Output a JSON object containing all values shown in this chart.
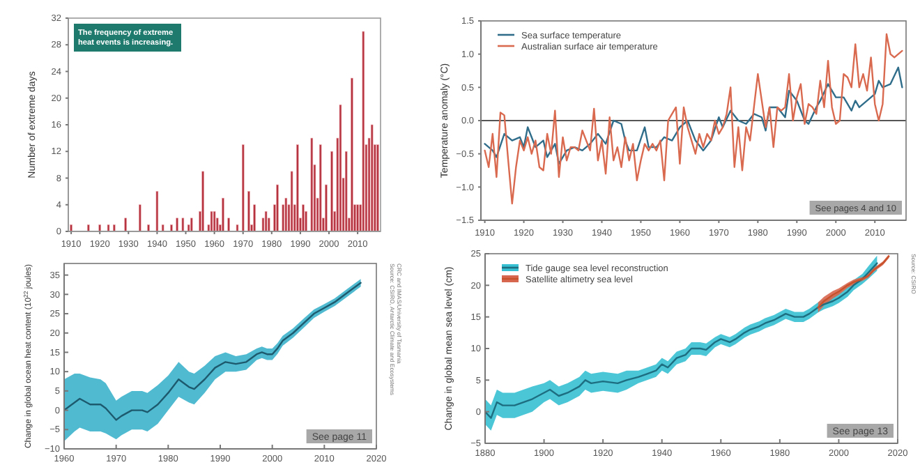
{
  "chart_data": [
    {
      "type": "bar",
      "ylabel": "Number of extreme days",
      "annotations": [
        "The frequency of extreme heat events is increasing."
      ],
      "color": "#b5323f",
      "xlim": [
        1909,
        2018
      ],
      "xticks": [
        1910,
        1920,
        1930,
        1940,
        1950,
        1960,
        1970,
        1980,
        1990,
        2000,
        2010
      ],
      "ylim": [
        0,
        32
      ],
      "yticks": [
        0,
        4,
        8,
        12,
        16,
        20,
        24,
        28,
        32
      ],
      "x": [
        1910,
        1916,
        1920,
        1923,
        1925,
        1929,
        1934,
        1937,
        1940,
        1942,
        1945,
        1947,
        1949,
        1951,
        1952,
        1955,
        1956,
        1958,
        1959,
        1960,
        1961,
        1962,
        1963,
        1965,
        1968,
        1970,
        1972,
        1973,
        1974,
        1977,
        1978,
        1979,
        1981,
        1982,
        1984,
        1985,
        1986,
        1987,
        1988,
        1989,
        1990,
        1991,
        1992,
        1994,
        1995,
        1996,
        1997,
        1998,
        1999,
        2001,
        2002,
        2003,
        2004,
        2005,
        2006,
        2007,
        2008,
        2009,
        2010,
        2011,
        2012,
        2013,
        2014,
        2015,
        2016,
        2017
      ],
      "values": [
        1,
        1,
        1,
        1,
        1,
        2,
        4,
        1,
        6,
        1,
        1,
        2,
        2,
        1,
        2,
        3,
        9,
        1,
        3,
        3,
        2,
        1,
        5,
        2,
        1,
        13,
        6,
        1,
        4,
        2,
        3,
        2,
        4,
        7,
        4,
        5,
        4,
        9,
        4,
        13,
        2,
        4,
        3,
        14,
        10,
        5,
        13,
        2,
        7,
        12,
        3,
        14,
        19,
        8,
        12,
        2,
        23,
        4,
        4,
        4,
        30,
        13,
        14,
        16,
        13,
        13
      ]
    },
    {
      "type": "line",
      "ylabel": "Temperature anomaly (°C)",
      "legend": "top left",
      "annotations": [
        "See pages 4 and 10"
      ],
      "xlim": [
        1909,
        2018
      ],
      "xticks": [
        1910,
        1920,
        1930,
        1940,
        1950,
        1960,
        1970,
        1980,
        1990,
        2000,
        2010
      ],
      "ylim": [
        -1.5,
        1.5
      ],
      "yticks": [
        {
          "value": -1.5,
          "label": "−1.5"
        },
        {
          "value": -1,
          "label": "−1.0"
        },
        {
          "value": -0.5,
          "label": "−0.5"
        },
        {
          "value": 0,
          "label": "0.0"
        },
        {
          "value": 0.5,
          "label": "0.5"
        },
        {
          "value": 1,
          "label": "1.0"
        },
        {
          "value": 1.5,
          "label": "1.5"
        }
      ],
      "ref_lines": [
        {
          "axis": "y",
          "value": 0,
          "color": "#555555"
        }
      ],
      "series": [
        {
          "name": "Sea surface temperature",
          "color": "#2f6d8a",
          "x": [
            1910,
            1912,
            1913,
            1915,
            1917,
            1919,
            1920,
            1921,
            1923,
            1925,
            1926,
            1928,
            1929,
            1931,
            1933,
            1935,
            1937,
            1939,
            1941,
            1943,
            1945,
            1946,
            1947,
            1949,
            1951,
            1952,
            1954,
            1956,
            1958,
            1960,
            1962,
            1964,
            1966,
            1968,
            1970,
            1971,
            1973,
            1975,
            1977,
            1979,
            1981,
            1982,
            1983,
            1985,
            1987,
            1988,
            1990,
            1992,
            1993,
            1995,
            1996,
            1998,
            2000,
            2002,
            2004,
            2005,
            2006,
            2008,
            2010,
            2011,
            2012,
            2014,
            2016,
            2017
          ],
          "values": [
            -0.35,
            -0.45,
            -0.55,
            -0.2,
            -0.3,
            -0.25,
            -0.4,
            -0.1,
            -0.4,
            -0.3,
            -0.55,
            -0.35,
            -0.65,
            -0.45,
            -0.4,
            -0.45,
            -0.35,
            -0.2,
            -0.35,
            0,
            -0.05,
            -0.3,
            -0.45,
            -0.45,
            -0.1,
            -0.4,
            -0.4,
            -0.25,
            -0.3,
            -0.1,
            0,
            -0.3,
            -0.45,
            -0.3,
            0.05,
            -0.1,
            0.15,
            0,
            -0.05,
            0.1,
            0.05,
            -0.15,
            0.2,
            0.2,
            0.05,
            0.45,
            0.3,
            0,
            -0.05,
            0.2,
            0.3,
            0.55,
            0.35,
            0.35,
            0.15,
            0.3,
            0.2,
            0.3,
            0.4,
            0.6,
            0.5,
            0.55,
            0.8,
            0.5
          ]
        },
        {
          "name": "Australian surface air temperature",
          "color": "#d9694f",
          "x": [
            1910,
            1911,
            1912,
            1913,
            1914,
            1915,
            1916,
            1917,
            1918,
            1919,
            1920,
            1921,
            1922,
            1923,
            1924,
            1925,
            1926,
            1927,
            1928,
            1929,
            1930,
            1931,
            1932,
            1933,
            1934,
            1935,
            1936,
            1937,
            1938,
            1939,
            1940,
            1941,
            1942,
            1943,
            1944,
            1945,
            1946,
            1947,
            1948,
            1949,
            1950,
            1951,
            1952,
            1953,
            1954,
            1955,
            1956,
            1957,
            1958,
            1959,
            1960,
            1961,
            1962,
            1963,
            1964,
            1965,
            1966,
            1967,
            1968,
            1969,
            1970,
            1971,
            1972,
            1973,
            1974,
            1975,
            1976,
            1977,
            1978,
            1979,
            1980,
            1981,
            1982,
            1983,
            1984,
            1985,
            1986,
            1987,
            1988,
            1989,
            1990,
            1991,
            1992,
            1993,
            1994,
            1995,
            1996,
            1997,
            1998,
            1999,
            2000,
            2001,
            2002,
            2003,
            2004,
            2005,
            2006,
            2007,
            2008,
            2009,
            2010,
            2011,
            2012,
            2013,
            2014,
            2015,
            2016,
            2017
          ],
          "values": [
            -0.45,
            -0.7,
            -0.2,
            -0.85,
            0.12,
            0.08,
            -0.6,
            -1.25,
            -0.7,
            -0.3,
            -0.45,
            -0.25,
            -0.5,
            -0.3,
            -0.7,
            -0.75,
            -0.2,
            -0.5,
            0.15,
            -0.85,
            -0.25,
            -0.6,
            -0.4,
            -0.4,
            -0.45,
            -0.15,
            -0.3,
            -0.45,
            0.18,
            -0.6,
            -0.3,
            -0.8,
            0.05,
            -0.6,
            -0.4,
            -0.7,
            -0.25,
            -0.6,
            -0.35,
            -0.9,
            -0.6,
            -0.35,
            -0.45,
            -0.35,
            -0.45,
            -0.3,
            -0.9,
            0,
            0.1,
            0.2,
            -0.65,
            0.2,
            -0.1,
            -0.3,
            -0.5,
            -0.2,
            -0.4,
            -0.2,
            -0.3,
            0,
            -0.2,
            -0.1,
            0.1,
            0.5,
            -0.7,
            -0.1,
            -0.75,
            -0.1,
            -0.3,
            0.2,
            0.7,
            0.3,
            -0.1,
            0.2,
            -0.4,
            0.2,
            0.15,
            0.2,
            0.7,
            0,
            0.35,
            0.55,
            -0.05,
            0.25,
            0.2,
            0.1,
            0.6,
            0.2,
            0.9,
            0.2,
            -0.05,
            0,
            0.7,
            0.65,
            0.5,
            1.15,
            0.5,
            0.7,
            0.45,
            0.95,
            0.25,
            0,
            0.25,
            1.3,
            1,
            0.95,
            1,
            1.05
          ]
        }
      ]
    },
    {
      "type": "line",
      "ylabel": "Change in global ocean heat content (10$^{22}$ joules)",
      "annotations": [
        "See page 11",
        "Source: CSIRO, Antarctic Climate and Ecosystems CRC and IMAS/University of Tasmania"
      ],
      "xlim": [
        1960,
        2020
      ],
      "xticks": [
        1960,
        1970,
        1980,
        1990,
        2000,
        2010,
        2020
      ],
      "ylim": [
        -10,
        38
      ],
      "yticks": [
        -10,
        -5,
        0,
        5,
        10,
        15,
        20,
        25,
        30,
        35
      ],
      "series": [
        {
          "color": "#1d5a6e",
          "x": [
            1960,
            1962,
            1963,
            1965,
            1967,
            1968,
            1970,
            1971,
            1973,
            1975,
            1976,
            1978,
            1980,
            1982,
            1984,
            1985,
            1987,
            1989,
            1991,
            1993,
            1995,
            1997,
            1998,
            1999,
            2000,
            2001,
            2002,
            2004,
            2006,
            2008,
            2010,
            2012,
            2014,
            2016,
            2017
          ],
          "values": [
            0,
            2,
            3,
            1.5,
            1.5,
            0.5,
            -2.5,
            -1.5,
            0,
            0,
            -0.5,
            1.5,
            4.5,
            8,
            6,
            5.5,
            8,
            11,
            12.5,
            12,
            12.5,
            14.5,
            15,
            14.5,
            14.5,
            16,
            18,
            20,
            22.5,
            25,
            26.5,
            28,
            30,
            32,
            33
          ],
          "lower": [
            -8,
            -5.5,
            -4.5,
            -5.5,
            -5.5,
            -6,
            -7.5,
            -6.5,
            -5,
            -5,
            -5.5,
            -3.5,
            0,
            3.5,
            2,
            1.5,
            4.5,
            8,
            10,
            10,
            10.5,
            13,
            13.5,
            13,
            13,
            14.6,
            16.7,
            18.8,
            21.3,
            23.9,
            25.5,
            27,
            29,
            31,
            32
          ],
          "upper": [
            8,
            9.5,
            9.5,
            8.5,
            8,
            7,
            2.5,
            3.5,
            5,
            5,
            4.5,
            6.5,
            9,
            12.5,
            10,
            9.5,
            11.5,
            14,
            15,
            14,
            14.5,
            16,
            16.5,
            16,
            16,
            17.4,
            19.3,
            21.2,
            23.7,
            26.1,
            27.5,
            29,
            31,
            33,
            34
          ]
        }
      ]
    },
    {
      "type": "line",
      "ylabel": "Change in global mean sea level (cm)",
      "legend": "top left",
      "annotations": [
        "See page 13",
        "Source: CSIRO"
      ],
      "xlim": [
        1880,
        2020
      ],
      "xticks": [
        1880,
        1900,
        1920,
        1940,
        1960,
        1980,
        2000,
        2020
      ],
      "ylim": [
        -5,
        25
      ],
      "yticks": [
        -5,
        0,
        5,
        10,
        15,
        20,
        25
      ],
      "series": [
        {
          "name": "Tide gauge sea level reconstruction",
          "color": "#1d6e80",
          "x": [
            1880,
            1882,
            1884,
            1886,
            1890,
            1893,
            1896,
            1900,
            1902,
            1905,
            1908,
            1912,
            1914,
            1916,
            1920,
            1925,
            1928,
            1932,
            1935,
            1938,
            1940,
            1942,
            1945,
            1948,
            1950,
            1953,
            1955,
            1958,
            1960,
            1963,
            1965,
            1968,
            1970,
            1973,
            1975,
            1978,
            1980,
            1982,
            1985,
            1988,
            1990,
            1993,
            1995,
            1998,
            2000,
            2003,
            2005,
            2008,
            2010,
            2013
          ],
          "values": [
            0,
            -1,
            1.5,
            1,
            1,
            1.5,
            2,
            3,
            3.5,
            2.5,
            3,
            4,
            5,
            4.5,
            4.8,
            4.5,
            5,
            5.5,
            6,
            6.5,
            7.5,
            7,
            8.5,
            9,
            10,
            10,
            9.8,
            11,
            11.5,
            11,
            11.5,
            12.5,
            13,
            13.5,
            14,
            14.5,
            15,
            15.5,
            15,
            15,
            15.5,
            16.5,
            17,
            17.5,
            18,
            19,
            20,
            21,
            22,
            23.5
          ],
          "lower": [
            -2,
            -3,
            -0.5,
            -1,
            -1,
            -0.5,
            0,
            1.5,
            2,
            1,
            1.5,
            2.5,
            3.5,
            3,
            3.3,
            3,
            3.5,
            4.5,
            5,
            5.5,
            6.5,
            6,
            7.5,
            8,
            9,
            9,
            8.8,
            10.2,
            10.7,
            10.2,
            10.7,
            11.7,
            12.2,
            12.7,
            13.2,
            13.7,
            14.2,
            14.7,
            14.2,
            14.2,
            14.7,
            15.7,
            16.2,
            16.7,
            17.2,
            18.2,
            19.2,
            20.2,
            21,
            22.3
          ],
          "upper": [
            2,
            1,
            3.5,
            3,
            3,
            3.5,
            4,
            4.5,
            5,
            4,
            4.5,
            5.5,
            6.5,
            6,
            6.3,
            6,
            6.5,
            6.5,
            7,
            7.5,
            8.5,
            8,
            9.5,
            10,
            11,
            11,
            10.8,
            11.8,
            12.3,
            11.8,
            12.3,
            13.3,
            13.8,
            14.3,
            14.8,
            15.3,
            15.8,
            16.3,
            15.8,
            15.8,
            16.3,
            17.3,
            17.8,
            18.3,
            18.8,
            19.8,
            20.8,
            21.8,
            23,
            24.7
          ]
        },
        {
          "name": "Satellite altimetry sea level",
          "color": "#c8522c",
          "x": [
            1993,
            1995,
            1998,
            2000,
            2003,
            2005,
            2008,
            2010,
            2012,
            2015,
            2017
          ],
          "values": [
            16.5,
            17.5,
            18.5,
            19,
            20,
            20.5,
            21,
            21.5,
            22.5,
            23.5,
            24.6
          ],
          "lower": [
            15.7,
            16.8,
            17.9,
            18.5,
            19.6,
            20.1,
            20.7,
            21.2,
            22.2,
            23.2,
            24.3
          ],
          "upper": [
            17.3,
            18.2,
            19.1,
            19.5,
            20.4,
            20.9,
            21.3,
            21.8,
            22.8,
            23.8,
            24.9
          ]
        }
      ]
    }
  ]
}
